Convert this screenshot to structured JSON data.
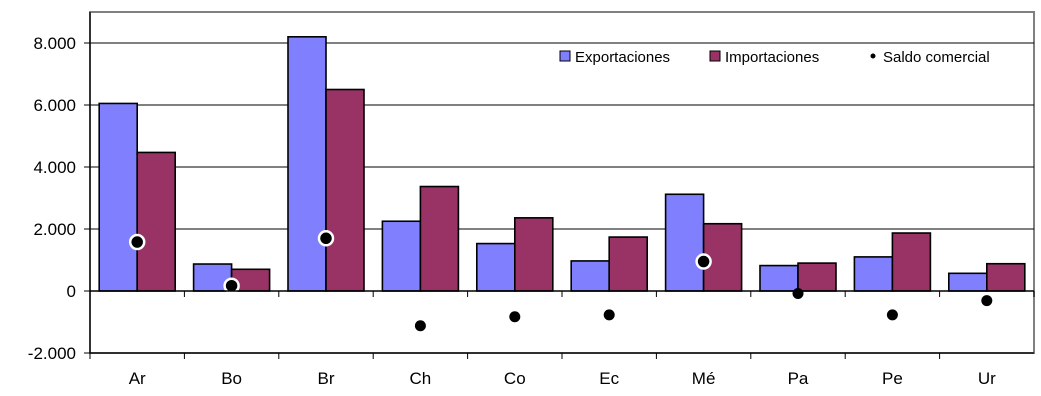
{
  "chart_data": {
    "type": "bar",
    "categories": [
      "Ar",
      "Bo",
      "Br",
      "Ch",
      "Co",
      "Ec",
      "Mé",
      "Pa",
      "Pe",
      "Ur"
    ],
    "series": [
      {
        "name": "Exportaciones",
        "kind": "bar",
        "color": "#8080FF",
        "values": [
          6050,
          870,
          8200,
          2250,
          1530,
          970,
          3120,
          820,
          1100,
          570
        ]
      },
      {
        "name": "Importaciones",
        "kind": "bar",
        "color": "#993366",
        "values": [
          4470,
          700,
          6500,
          3370,
          2360,
          1740,
          2170,
          900,
          1870,
          880
        ]
      },
      {
        "name": "Saldo comercial",
        "kind": "point",
        "color": "#000000",
        "values": [
          1580,
          170,
          1700,
          -1120,
          -830,
          -770,
          950,
          -80,
          -770,
          -310
        ]
      }
    ],
    "ylim": [
      -2000,
      9000
    ],
    "yticks": [
      -2000,
      0,
      2000,
      4000,
      6000,
      8000
    ],
    "ytick_labels": [
      "-2.000",
      "0",
      "2.000",
      "4.000",
      "6.000",
      "8.000"
    ],
    "gridlines": true,
    "legend_position": "top-right",
    "title": "",
    "xlabel": "",
    "ylabel": ""
  }
}
